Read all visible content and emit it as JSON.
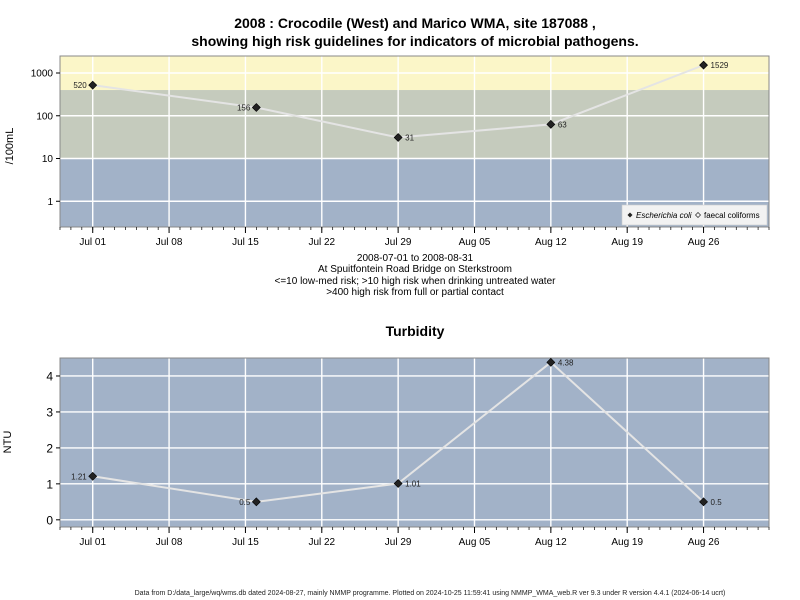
{
  "chart_data": [
    {
      "type": "line",
      "title_line1": "2008 : Crocodile (West) and Marico WMA, site 187088 ,",
      "title_line2": "showing high risk guidelines for indicators of microbial pathogens.",
      "ylabel": "/100mL",
      "yscale": "log",
      "ylim": [
        0.25,
        2500
      ],
      "yticks": [
        "1",
        "10",
        "100",
        "1000"
      ],
      "ytick_values": [
        1,
        10,
        100,
        1000
      ],
      "x_dates": [
        "2008-07-01",
        "2008-07-16",
        "2008-07-29",
        "2008-08-12",
        "2008-08-26"
      ],
      "series": [
        {
          "name": "Escherichia coli",
          "values": [
            520,
            156,
            31,
            63,
            1529
          ],
          "labels": [
            "520",
            "156",
            "31",
            "63",
            "1529"
          ]
        }
      ],
      "legend": {
        "placement": "bottom-right",
        "entries": [
          "Escherichia coli",
          "faecal coliforms"
        ]
      },
      "bands": [
        {
          "from": 0.25,
          "to": 10,
          "color": "#a2b2c8"
        },
        {
          "from": 10,
          "to": 400,
          "color": "#c5cbbd"
        },
        {
          "from": 400,
          "to": 2500,
          "color": "#fbf6c8"
        }
      ],
      "notes": [
        "2008-07-01 to 2008-08-31",
        "At Spuitfontein Road Bridge on Sterkstroom",
        "<=10 low-med risk; >10 high risk when drinking untreated water",
        ">400 high risk from full or partial contact"
      ]
    },
    {
      "type": "line",
      "title": "Turbidity",
      "ylabel": "NTU",
      "ylim": [
        -0.2,
        4.5
      ],
      "yticks": [
        "0",
        "1",
        "2",
        "3",
        "4"
      ],
      "ytick_values": [
        0,
        1,
        2,
        3,
        4
      ],
      "x_dates": [
        "2008-07-01",
        "2008-07-16",
        "2008-07-29",
        "2008-08-12",
        "2008-08-26"
      ],
      "series": [
        {
          "values": [
            1.21,
            0.5,
            1.01,
            4.38,
            0.5
          ],
          "labels": [
            "1.21",
            "0.5",
            "1.01",
            "4.38",
            "0.5"
          ]
        }
      ],
      "background": "#a2b2c8"
    }
  ],
  "xaxis": {
    "range": [
      "2008-06-28",
      "2008-09-01"
    ],
    "ticks": [
      "2008-07-01",
      "2008-07-08",
      "2008-07-15",
      "2008-07-22",
      "2008-07-29",
      "2008-08-05",
      "2008-08-12",
      "2008-08-19",
      "2008-08-26"
    ],
    "tick_labels": [
      "Jul 01",
      "Jul 08",
      "Jul 15",
      "Jul 22",
      "Jul 29",
      "Aug 05",
      "Aug 12",
      "Aug 19",
      "Aug 26"
    ]
  },
  "footer": "Data from D:/data_large/wq/wms.db dated 2024-08-27, mainly NMMP programme. Plotted on 2024-10-25 11:59:41 using NMMP_WMA_web.R ver 9.3 under R version 4.4.1 (2024-06-14 ucrt)"
}
